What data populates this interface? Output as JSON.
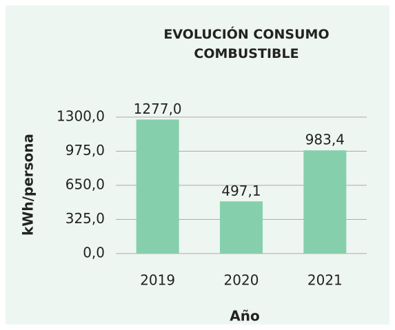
{
  "chart_data": {
    "type": "bar",
    "title": "EVOLUCIÓN CONSUMO COMBUSTIBLE",
    "x_label": "Año",
    "y_label": "kWh/persona",
    "categories": [
      "2019",
      "2020",
      "2021"
    ],
    "values": [
      1277.0,
      497.1,
      983.4
    ],
    "value_labels": [
      "1277,0",
      "497,1",
      "983,4"
    ],
    "color": "#86cfac",
    "ylim": [
      0,
      1300
    ],
    "yticks": [
      {
        "value": 0,
        "label": "0,0"
      },
      {
        "value": 325,
        "label": "325,0"
      },
      {
        "value": 650,
        "label": "650,0"
      },
      {
        "value": 975,
        "label": "975,0"
      },
      {
        "value": 1300,
        "label": "1300,0"
      }
    ],
    "grid": true
  }
}
